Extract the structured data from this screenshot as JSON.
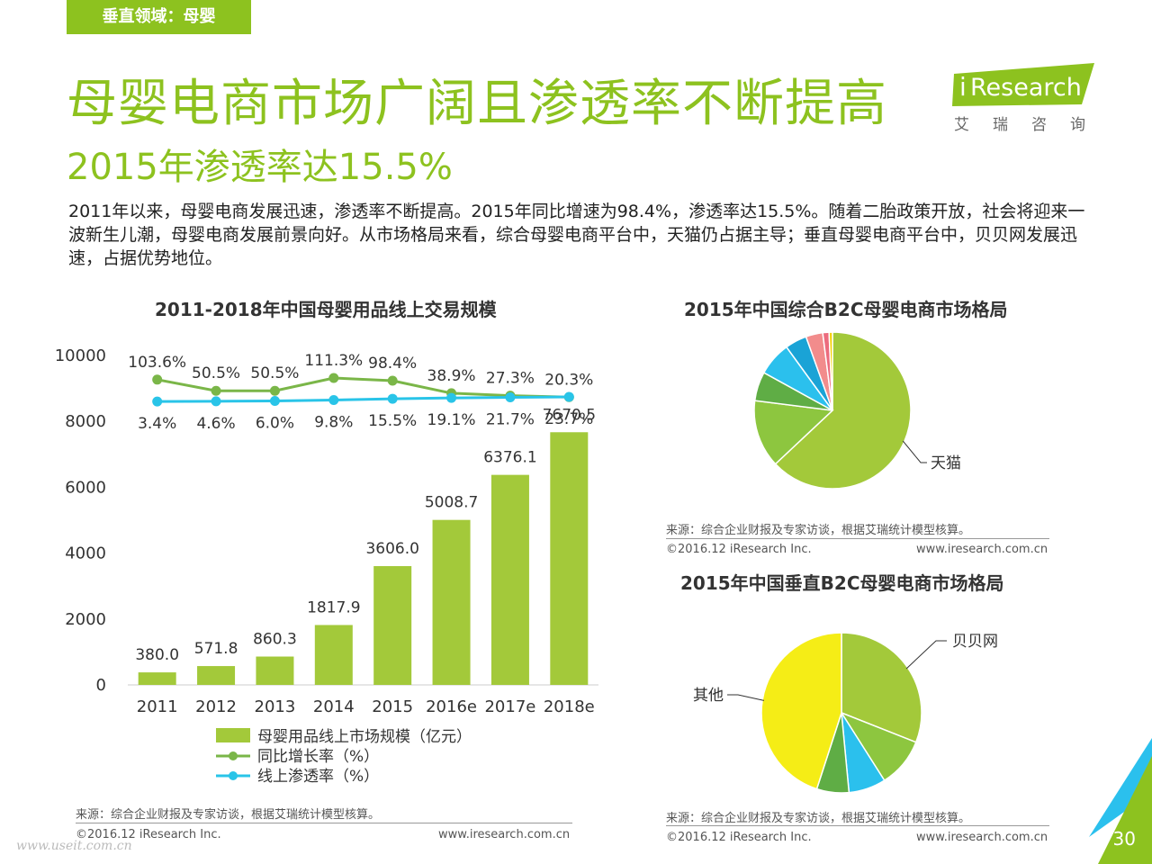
{
  "section_tag": "垂直领域：母婴",
  "title": "母婴电商市场广阔且渗透率不断提高",
  "subtitle": "2015年渗透率达15.5%",
  "intro": "2011年以来，母婴电商发展迅速，渗透率不断提高。2015年同比增速为98.4%，渗透率达15.5%。随着二胎政策开放，社会将迎来一波新生儿潮，母婴电商发展前景向好。从市场格局来看，综合母婴电商平台中，天猫仍占据主导；垂直母婴电商平台中，贝贝网发展迅速，占据优势地位。",
  "logo": {
    "brand_i": "i",
    "brand_rest": "Research",
    "cn": "艾瑞咨询",
    "color": "#8dc21f"
  },
  "left_panel": {
    "source": "来源：综合企业财报及专家访谈，根据艾瑞统计模型核算。",
    "copyright": "©2016.12 iResearch Inc.",
    "website": "www.iresearch.com.cn"
  },
  "right_panel": {
    "source_top": "来源：综合企业财报及专家访谈，根据艾瑞统计模型核算。",
    "copyright_top": "©2016.12 iResearch Inc.",
    "website_top": "www.iresearch.com.cn",
    "source_bottom": "来源：综合企业财报及专家访谈，根据艾瑞统计模型核算。",
    "copyright_bottom": "©2016.12 iResearch Inc.",
    "website_bottom": "www.iresearch.com.cn"
  },
  "page_number": "30",
  "watermark": "www.useit.com.cn",
  "chart_data": [
    {
      "type": "bar",
      "title": "2011-2018年中国母婴用品线上交易规模",
      "categories": [
        "2011",
        "2012",
        "2013",
        "2014",
        "2015",
        "2016e",
        "2017e",
        "2018e"
      ],
      "ylim": [
        0,
        10000
      ],
      "yticks": [
        0,
        2000,
        4000,
        6000,
        8000,
        10000
      ],
      "series": [
        {
          "name": "母婴用品线上市场规模（亿元）",
          "kind": "bar",
          "color": "#a3c93a",
          "values": [
            380.0,
            571.8,
            860.3,
            1817.9,
            3606.0,
            5008.7,
            6376.1,
            7670.5
          ],
          "labels": [
            "380.0",
            "571.8",
            "860.3",
            "1817.9",
            "3606.0",
            "5008.7",
            "6376.1",
            "7670.5"
          ]
        },
        {
          "name": "同比增长率（%）",
          "kind": "line",
          "color": "#7ab648",
          "values": [
            103.6,
            50.5,
            50.5,
            111.3,
            98.4,
            38.9,
            27.3,
            20.3
          ],
          "labels": [
            "103.6%",
            "50.5%",
            "50.5%",
            "111.3%",
            "98.4%",
            "38.9%",
            "27.3%",
            "20.3%"
          ]
        },
        {
          "name": "线上渗透率（%）",
          "kind": "line",
          "color": "#29c4e8",
          "values": [
            3.4,
            4.6,
            6.0,
            9.8,
            15.5,
            19.1,
            21.7,
            23.7
          ],
          "labels": [
            "3.4%",
            "4.6%",
            "6.0%",
            "9.8%",
            "15.5%",
            "19.1%",
            "21.7%",
            "23.7%"
          ]
        }
      ],
      "legend_position": "bottom"
    },
    {
      "type": "pie",
      "title": "2015年中国综合B2C母婴电商市场格局",
      "slices": [
        {
          "label": "天猫",
          "value": 63.0,
          "color": "#a3c93a"
        },
        {
          "label": "",
          "value": 14.0,
          "color": "#8dc63f"
        },
        {
          "label": "",
          "value": 6.0,
          "color": "#5fad45"
        },
        {
          "label": "",
          "value": 7.0,
          "color": "#2bc0ed"
        },
        {
          "label": "",
          "value": 4.5,
          "color": "#1aa3d6"
        },
        {
          "label": "",
          "value": 3.5,
          "color": "#f28c8c"
        },
        {
          "label": "",
          "value": 1.3,
          "color": "#ec6b7d"
        },
        {
          "label": "",
          "value": 0.7,
          "color": "#f5d100"
        }
      ]
    },
    {
      "type": "pie",
      "title": "2015年中国垂直B2C母婴电商市场格局",
      "slices": [
        {
          "label": "贝贝网",
          "value": 31.0,
          "color": "#a3c93a"
        },
        {
          "label": "",
          "value": 10.0,
          "color": "#8dc63f"
        },
        {
          "label": "",
          "value": 7.5,
          "color": "#2bc0ed"
        },
        {
          "label": "",
          "value": 6.5,
          "color": "#5fad45"
        },
        {
          "label": "其他",
          "value": 45.0,
          "color": "#f5ed16"
        }
      ]
    }
  ]
}
